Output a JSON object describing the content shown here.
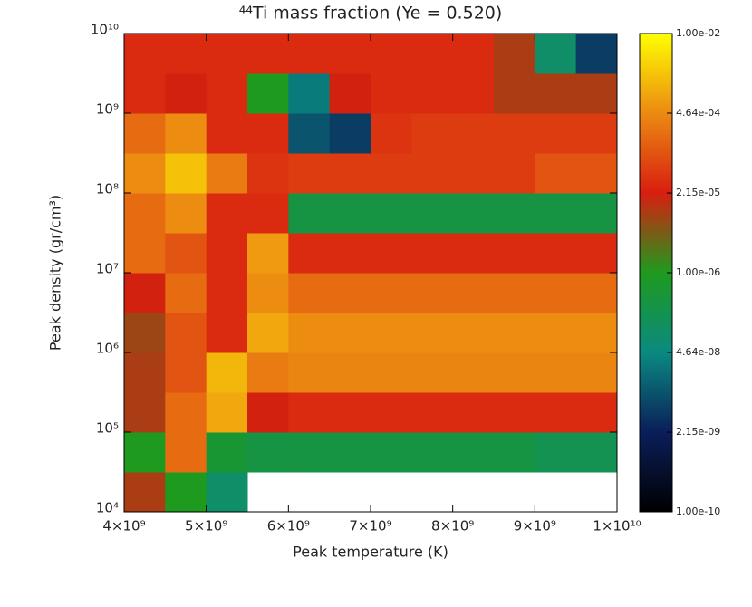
{
  "chart_data": {
    "type": "heatmap",
    "title": "⁴⁴Ti mass fraction (Ye = 0.520)",
    "x_label": "Peak temperature (K)",
    "y_label": "Peak density (gr/cm³)",
    "x_bins": [
      4000000000,
      4500000000,
      5000000000,
      5500000000,
      6000000000,
      6500000000,
      7000000000,
      7500000000,
      8000000000,
      8500000000,
      9000000000,
      9500000000,
      10000000000
    ],
    "y_bins": [
      10000,
      31623,
      100000,
      316228,
      1000000,
      3162278,
      10000000,
      31622777,
      100000000,
      316227766,
      1000000000,
      3162277660,
      10000000000
    ],
    "z": [
      [
        1e-05,
        1e-06,
        1e-07,
        null,
        null,
        null,
        null,
        null,
        null,
        null,
        null,
        null
      ],
      [
        1e-06,
        0.0002,
        5e-07,
        3e-07,
        3e-07,
        3e-07,
        3e-07,
        3e-07,
        3e-07,
        3e-07,
        2e-07,
        2e-07
      ],
      [
        1e-05,
        0.0002,
        0.001,
        2e-05,
        3e-05,
        3e-05,
        3e-05,
        3e-05,
        3e-05,
        3e-05,
        3e-05,
        3e-05
      ],
      [
        1e-05,
        0.0001,
        0.0015,
        0.0003,
        0.0004,
        0.0004,
        0.0004,
        0.0004,
        0.0004,
        0.0004,
        0.0004,
        0.0004
      ],
      [
        8e-06,
        0.0001,
        3e-05,
        0.001,
        0.0005,
        0.0005,
        0.0005,
        0.0005,
        0.0005,
        0.0005,
        0.0005,
        0.0005
      ],
      [
        2e-05,
        0.0002,
        3e-05,
        0.0005,
        0.0002,
        0.0002,
        0.0002,
        0.0002,
        0.0002,
        0.0002,
        0.0002,
        0.0002
      ],
      [
        0.0002,
        0.0001,
        3e-05,
        0.0007,
        3e-05,
        3e-05,
        3e-05,
        3e-05,
        3e-05,
        3e-05,
        3e-05,
        3e-05
      ],
      [
        0.0002,
        0.0005,
        3e-05,
        3e-05,
        3e-07,
        3e-07,
        3e-07,
        3e-07,
        3e-07,
        3e-07,
        3e-07,
        3e-07
      ],
      [
        0.0005,
        0.002,
        0.0003,
        4e-05,
        5e-05,
        5e-05,
        5e-05,
        5e-05,
        5e-05,
        5e-05,
        0.0001,
        0.0001
      ],
      [
        0.0002,
        0.0005,
        3e-05,
        3e-05,
        1e-08,
        5e-09,
        4e-05,
        5e-05,
        5e-05,
        5e-05,
        5e-05,
        5e-05
      ],
      [
        3e-05,
        2e-05,
        3e-05,
        1e-06,
        3e-08,
        2e-05,
        3e-05,
        3e-05,
        3e-05,
        1e-05,
        1e-05,
        1e-05
      ],
      [
        3e-05,
        3e-05,
        3e-05,
        3e-05,
        3e-05,
        3e-05,
        3e-05,
        3e-05,
        3e-05,
        1e-05,
        1e-07,
        5e-09
      ]
    ],
    "xlim": [
      4000000000,
      10000000000
    ],
    "xticks": [
      {
        "value": 4000000000,
        "label": "4×10⁹"
      },
      {
        "value": 5000000000,
        "label": "5×10⁹"
      },
      {
        "value": 6000000000,
        "label": "6×10⁹"
      },
      {
        "value": 7000000000,
        "label": "7×10⁹"
      },
      {
        "value": 8000000000,
        "label": "8×10⁹"
      },
      {
        "value": 9000000000,
        "label": "9×10⁹"
      },
      {
        "value": 10000000000,
        "label": "1×10¹⁰"
      }
    ],
    "ylim": [
      10000,
      10000000000
    ],
    "y_log": true,
    "yticks": [
      {
        "value": 10000,
        "label": "10⁴"
      },
      {
        "value": 100000,
        "label": "10⁵"
      },
      {
        "value": 1000000,
        "label": "10⁶"
      },
      {
        "value": 10000000,
        "label": "10⁷"
      },
      {
        "value": 100000000,
        "label": "10⁸"
      },
      {
        "value": 1000000000,
        "label": "10⁹"
      },
      {
        "value": 10000000000,
        "label": "10¹⁰"
      }
    ],
    "zlim": [
      1e-10,
      0.01
    ],
    "z_log": true,
    "zticks": [
      {
        "value": 1e-10,
        "label": "1.00e-10"
      },
      {
        "value": 2.15e-09,
        "label": "2.15e-09"
      },
      {
        "value": 4.64e-08,
        "label": "4.64e-08"
      },
      {
        "value": 1e-06,
        "label": "1.00e-06"
      },
      {
        "value": 2.15e-05,
        "label": "2.15e-05"
      },
      {
        "value": 0.000464,
        "label": "4.64e-04"
      },
      {
        "value": 0.01,
        "label": "1.00e-02"
      }
    ],
    "colormap": [
      "#000000",
      "#0a1e5a",
      "#0a8a80",
      "#1e9a1e",
      "#d81e10",
      "#ec8a12",
      "#ffff00"
    ]
  }
}
